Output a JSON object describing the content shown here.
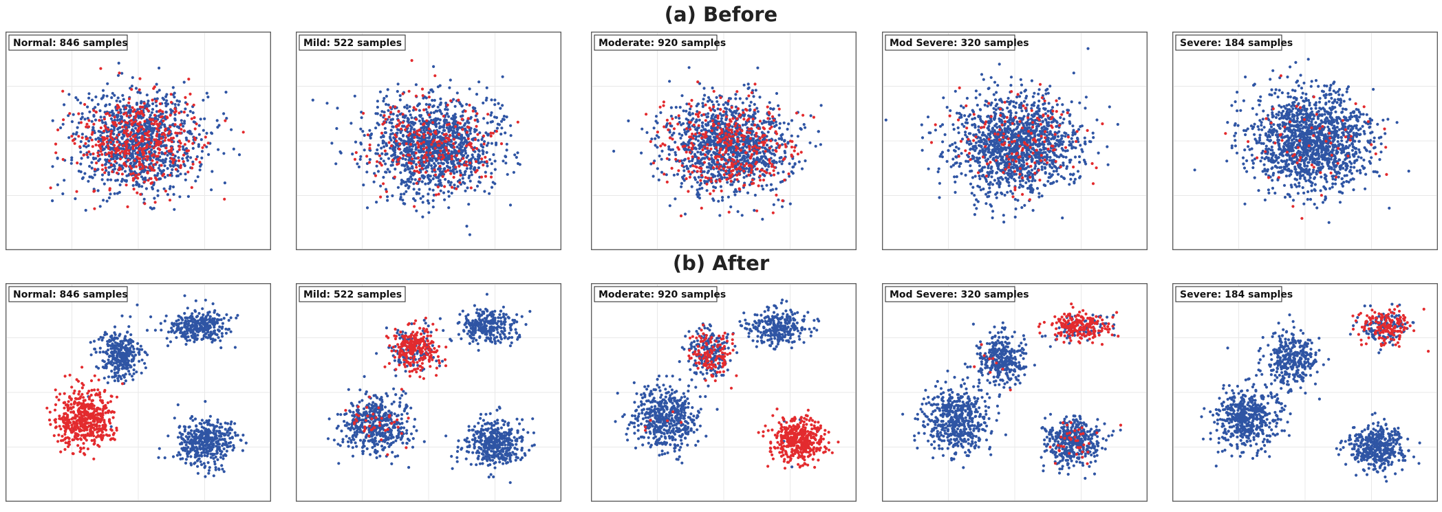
{
  "row_titles": {
    "before": "(a) Before",
    "after": "(b) After"
  },
  "colors": {
    "majority": "#2f55a4",
    "minority": "#e32b2e"
  },
  "chart_data": [
    {
      "type": "scatter",
      "row": "before",
      "title": "(a) Before",
      "panels": [
        {
          "label": "Normal: 846 samples",
          "class": "Normal",
          "minority_count": 846,
          "clusters": [
            {
              "x": 0.5,
              "y": 0.5,
              "sx": 0.24,
              "sy": 0.22,
              "n": 1500,
              "red": 0.3
            }
          ]
        },
        {
          "label": "Mild: 522 samples",
          "class": "Mild",
          "minority_count": 522,
          "clusters": [
            {
              "x": 0.52,
              "y": 0.52,
              "sx": 0.23,
              "sy": 0.22,
              "n": 1500,
              "red": 0.17
            }
          ]
        },
        {
          "label": "Moderate:  920 samples",
          "class": "Moderate",
          "minority_count": 920,
          "clusters": [
            {
              "x": 0.52,
              "y": 0.52,
              "sx": 0.24,
              "sy": 0.22,
              "n": 1500,
              "red": 0.27
            }
          ]
        },
        {
          "label": "Mod Severe: 320 samples",
          "class": "Mod Severe",
          "minority_count": 320,
          "clusters": [
            {
              "x": 0.5,
              "y": 0.52,
              "sx": 0.24,
              "sy": 0.22,
              "n": 1500,
              "red": 0.11
            }
          ]
        },
        {
          "label": "Severe: 184 samples",
          "class": "Severe",
          "minority_count": 184,
          "clusters": [
            {
              "x": 0.52,
              "y": 0.5,
              "sx": 0.23,
              "sy": 0.22,
              "n": 1500,
              "red": 0.06
            }
          ]
        }
      ]
    },
    {
      "type": "scatter",
      "row": "after",
      "title": "(b) After",
      "panels": [
        {
          "label": "Normal: 846 samples",
          "class": "Normal",
          "minority_count": 846,
          "clusters": [
            {
              "x": 0.3,
              "y": 0.62,
              "sx": 0.11,
              "sy": 0.14,
              "n": 520,
              "red": 0.98
            },
            {
              "x": 0.43,
              "y": 0.33,
              "sx": 0.08,
              "sy": 0.11,
              "n": 320,
              "red": 0.0
            },
            {
              "x": 0.72,
              "y": 0.2,
              "sx": 0.11,
              "sy": 0.08,
              "n": 300,
              "red": 0.0
            },
            {
              "x": 0.75,
              "y": 0.73,
              "sx": 0.11,
              "sy": 0.11,
              "n": 420,
              "red": 0.0
            }
          ]
        },
        {
          "label": "Mild: 522 samples",
          "class": "Mild",
          "minority_count": 522,
          "clusters": [
            {
              "x": 0.45,
              "y": 0.3,
              "sx": 0.09,
              "sy": 0.11,
              "n": 360,
              "red": 0.65
            },
            {
              "x": 0.3,
              "y": 0.65,
              "sx": 0.12,
              "sy": 0.13,
              "n": 520,
              "red": 0.08
            },
            {
              "x": 0.72,
              "y": 0.2,
              "sx": 0.11,
              "sy": 0.08,
              "n": 280,
              "red": 0.0
            },
            {
              "x": 0.75,
              "y": 0.73,
              "sx": 0.11,
              "sy": 0.11,
              "n": 420,
              "red": 0.0
            }
          ]
        },
        {
          "label": "Moderate:  920 samples",
          "class": "Moderate",
          "minority_count": 920,
          "clusters": [
            {
              "x": 0.45,
              "y": 0.32,
              "sx": 0.08,
              "sy": 0.11,
              "n": 320,
              "red": 0.45
            },
            {
              "x": 0.28,
              "y": 0.62,
              "sx": 0.12,
              "sy": 0.14,
              "n": 520,
              "red": 0.02
            },
            {
              "x": 0.7,
              "y": 0.2,
              "sx": 0.11,
              "sy": 0.08,
              "n": 280,
              "red": 0.0
            },
            {
              "x": 0.78,
              "y": 0.72,
              "sx": 0.1,
              "sy": 0.1,
              "n": 420,
              "red": 0.98
            }
          ]
        },
        {
          "label": "Mod Severe: 320 samples",
          "class": "Mod Severe",
          "minority_count": 320,
          "clusters": [
            {
              "x": 0.75,
              "y": 0.2,
              "sx": 0.11,
              "sy": 0.07,
              "n": 280,
              "red": 0.7
            },
            {
              "x": 0.45,
              "y": 0.35,
              "sx": 0.09,
              "sy": 0.12,
              "n": 340,
              "red": 0.02
            },
            {
              "x": 0.28,
              "y": 0.62,
              "sx": 0.12,
              "sy": 0.14,
              "n": 520,
              "red": 0.0
            },
            {
              "x": 0.72,
              "y": 0.73,
              "sx": 0.11,
              "sy": 0.11,
              "n": 420,
              "red": 0.1
            }
          ]
        },
        {
          "label": "Severe: 184 samples",
          "class": "Severe",
          "minority_count": 184,
          "clusters": [
            {
              "x": 0.8,
              "y": 0.2,
              "sx": 0.1,
              "sy": 0.08,
              "n": 280,
              "red": 0.55
            },
            {
              "x": 0.45,
              "y": 0.35,
              "sx": 0.09,
              "sy": 0.12,
              "n": 340,
              "red": 0.0
            },
            {
              "x": 0.28,
              "y": 0.62,
              "sx": 0.12,
              "sy": 0.14,
              "n": 520,
              "red": 0.0
            },
            {
              "x": 0.77,
              "y": 0.75,
              "sx": 0.11,
              "sy": 0.1,
              "n": 420,
              "red": 0.0
            }
          ]
        }
      ]
    }
  ]
}
